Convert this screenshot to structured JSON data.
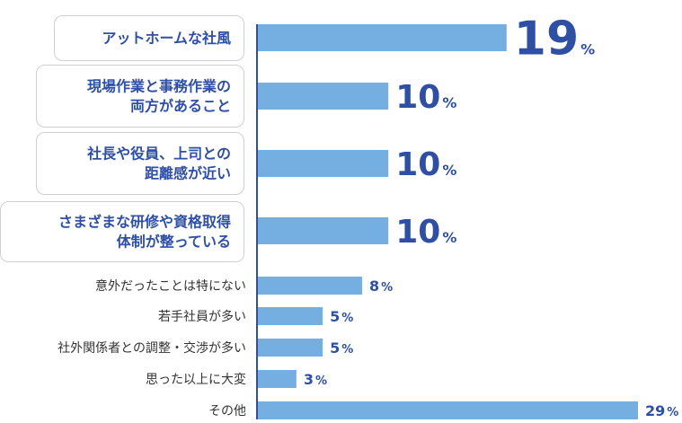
{
  "chart_data": {
    "type": "bar",
    "orientation": "horizontal",
    "categories": [
      [
        "アットホームな社風"
      ],
      [
        "現場作業と事務作業の",
        "両方があること"
      ],
      [
        "社長や役員、上司との",
        "距離感が近い"
      ],
      [
        "さまざまな研修や資格取得",
        "体制が整っている"
      ],
      [
        "意外だったことは特にない"
      ],
      [
        "若手社員が多い"
      ],
      [
        "社外関係者との調整・交渉が多い"
      ],
      [
        "思った以上に大変"
      ],
      [
        "その他"
      ]
    ],
    "values": [
      19,
      10,
      10,
      10,
      8,
      5,
      5,
      3,
      29
    ],
    "value_labels": [
      "19",
      "10",
      "10",
      "10",
      "8",
      "5",
      "5",
      "3",
      "29"
    ],
    "unit": "%",
    "highlighted_count": 4,
    "xlim": [
      0,
      29
    ],
    "colors": {
      "bar": "#75aee0",
      "axis": "#2e4fa3",
      "text": "#2e4fa3",
      "box_border": "#cfcfcf"
    }
  }
}
